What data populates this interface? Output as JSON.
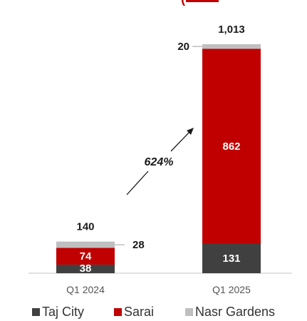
{
  "header_fragment": "(",
  "chart_data": {
    "type": "bar",
    "stacked": true,
    "categories": [
      "Q1 2024",
      "Q1 2025"
    ],
    "series": [
      {
        "name": "Taj City",
        "color": "#404040",
        "values": [
          38,
          131
        ]
      },
      {
        "name": "Sarai",
        "color": "#c00000",
        "values": [
          74,
          862
        ]
      },
      {
        "name": "Nasr Gardens",
        "color": "#bfbfbf",
        "values": [
          28,
          20
        ]
      }
    ],
    "totals": [
      "140",
      "1,013"
    ],
    "segment_labels": [
      [
        "38",
        "74",
        "28"
      ],
      [
        "131",
        "862",
        "20"
      ]
    ],
    "growth_annotation": "624%",
    "legend_position": "bottom",
    "ylim": [
      0,
      1013
    ],
    "grid": false
  }
}
